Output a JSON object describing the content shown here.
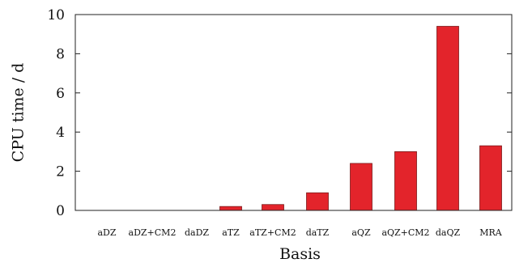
{
  "chart_data": {
    "type": "bar",
    "title": "",
    "xlabel": "Basis",
    "ylabel": "CPU time / d",
    "categories": [
      "aDZ",
      "aDZ+CM2",
      "daDZ",
      "aTZ",
      "aTZ+CM2",
      "daTZ",
      "aQZ",
      "aQZ+CM2",
      "daQZ",
      "MRA"
    ],
    "values": [
      0.0,
      0.0,
      0.0,
      0.2,
      0.3,
      0.9,
      2.4,
      3.0,
      9.4,
      3.3
    ],
    "ylim": [
      0,
      10
    ],
    "yticks": [
      0,
      2,
      4,
      6,
      8,
      10
    ],
    "grid": false,
    "legend": "none",
    "bar_color": "#e3242b"
  }
}
